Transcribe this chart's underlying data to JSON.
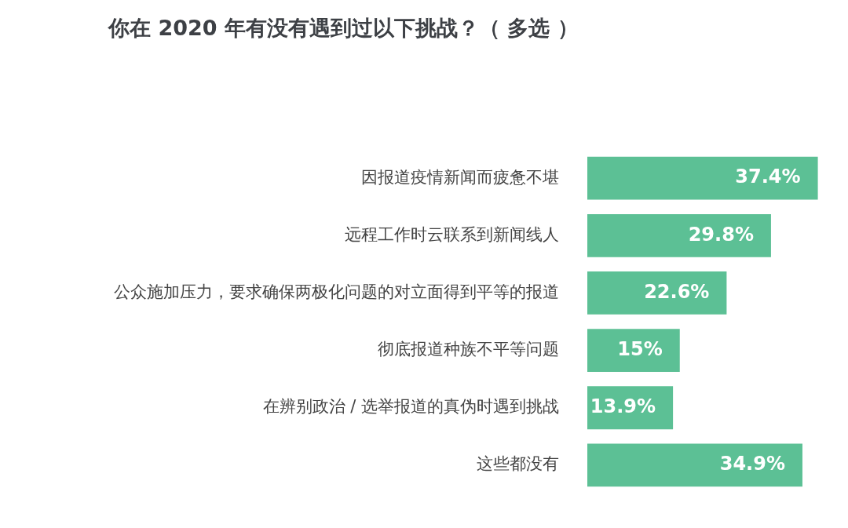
{
  "chart_data": {
    "type": "bar",
    "orientation": "horizontal",
    "title": "你在 2020 年有没有遇到过以下挑战？（ 多选 ）",
    "categories": [
      "因报道疫情新闻而疲惫不堪",
      "远程工作时云联系到新闻线人",
      "公众施加压力，要求确保两极化问题的对立面得到平等的报道",
      "彻底报道种族不平等问题",
      "在辨别政治 / 选举报道的真伪时遇到挑战",
      "这些都没有"
    ],
    "values": [
      37.4,
      29.8,
      22.6,
      15,
      13.9,
      34.9
    ],
    "value_labels": [
      "37.4%",
      "29.8%",
      "22.6%",
      "15%",
      "13.9%",
      "34.9%"
    ],
    "color": "#5cc095",
    "grid": false,
    "legend": false
  }
}
